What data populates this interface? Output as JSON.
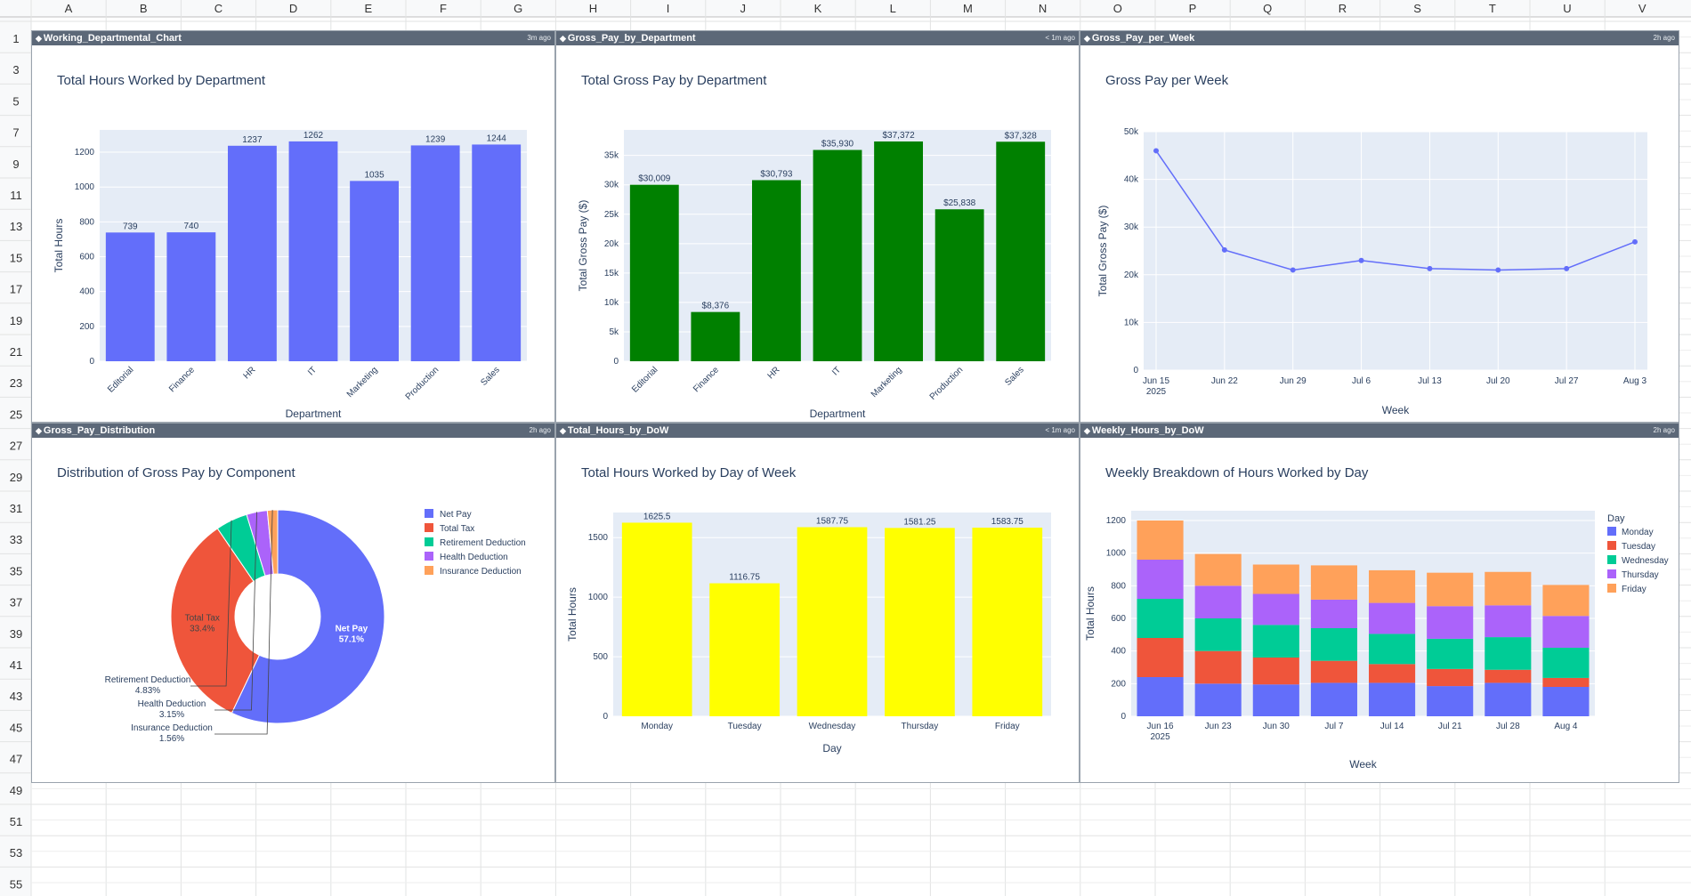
{
  "sheet": {
    "columns": [
      "A",
      "B",
      "C",
      "D",
      "E",
      "F",
      "G",
      "H",
      "I",
      "J",
      "K",
      "L",
      "M",
      "N",
      "O",
      "P",
      "Q",
      "R",
      "S",
      "T",
      "U",
      "V"
    ],
    "rows": [
      "1",
      "3",
      "5",
      "7",
      "9",
      "11",
      "13",
      "15",
      "17",
      "19",
      "21",
      "23",
      "25",
      "27",
      "29",
      "31",
      "33",
      "35",
      "37",
      "39",
      "41",
      "43",
      "45",
      "47",
      "49",
      "51",
      "53",
      "55"
    ]
  },
  "panels": {
    "p1": {
      "name": "Working_Departmental_Chart",
      "ago": "3m ago"
    },
    "p2": {
      "name": "Gross_Pay_by_Department",
      "ago": "< 1m ago"
    },
    "p3": {
      "name": "Gross_Pay_per_Week",
      "ago": "2h ago"
    },
    "p4": {
      "name": "Gross_Pay_Distribution",
      "ago": "2h ago"
    },
    "p5": {
      "name": "Total_Hours_by_DoW",
      "ago": "< 1m ago"
    },
    "p6": {
      "name": "Weekly_Hours_by_DoW",
      "ago": "2h ago"
    }
  },
  "colors": {
    "header": "#5c6878",
    "plot_bg": "#e5ecf6",
    "blue": "#636efa",
    "green": "#008000",
    "yellow": "#ffff00"
  },
  "chart_data": [
    {
      "type": "bar",
      "title": "Total Hours Worked by Department",
      "xlabel": "Department",
      "ylabel": "Total Hours",
      "categories": [
        "Editorial",
        "Finance",
        "HR",
        "IT",
        "Marketing",
        "Production",
        "Sales"
      ],
      "values": [
        739,
        740,
        1237,
        1262,
        1035,
        1239,
        1244
      ],
      "labels": [
        "739",
        "740",
        "1237",
        "1262",
        "1035",
        "1239",
        "1244"
      ],
      "yticks": [
        0,
        200,
        400,
        600,
        800,
        1000,
        1200
      ],
      "ylim": [
        0,
        1328
      ],
      "color": "#636efa"
    },
    {
      "type": "bar",
      "title": "Total Gross Pay by Department",
      "xlabel": "Department",
      "ylabel": "Total Gross Pay ($)",
      "categories": [
        "Editorial",
        "Finance",
        "HR",
        "IT",
        "Marketing",
        "Production",
        "Sales"
      ],
      "values": [
        30009,
        8376,
        30793,
        35930,
        37372,
        25838,
        37328
      ],
      "labels": [
        "$30,009",
        "$8,376",
        "$30,793",
        "$35,930",
        "$37,372",
        "$25,838",
        "$37,328"
      ],
      "yticks": [
        0,
        5000,
        10000,
        15000,
        20000,
        25000,
        30000,
        35000
      ],
      "yticklabels": [
        "0",
        "5k",
        "10k",
        "15k",
        "20k",
        "25k",
        "30k",
        "35k"
      ],
      "ylim": [
        0,
        39339
      ],
      "color": "#008000"
    },
    {
      "type": "line",
      "title": "Gross Pay per Week",
      "xlabel": "Week",
      "ylabel": "Total Gross Pay ($)",
      "x": [
        "2025-06-15",
        "2025-06-22",
        "2025-06-29",
        "2025-07-06",
        "2025-07-13",
        "2025-07-20",
        "2025-07-27",
        "2025-08-03"
      ],
      "y": [
        46000,
        25200,
        21000,
        23000,
        21300,
        21000,
        21300,
        26900
      ],
      "xticks": [
        {
          "label": "Jun 15",
          "sub": "2025"
        },
        {
          "label": "Jun 22",
          "sub": ""
        },
        {
          "label": "Jun 29",
          "sub": ""
        },
        {
          "label": "Jul 6",
          "sub": ""
        },
        {
          "label": "Jul 13",
          "sub": ""
        },
        {
          "label": "Jul 20",
          "sub": ""
        },
        {
          "label": "Jul 27",
          "sub": ""
        },
        {
          "label": "Aug 3",
          "sub": ""
        }
      ],
      "yticks": [
        0,
        10000,
        20000,
        30000,
        40000,
        50000
      ],
      "yticklabels": [
        "0",
        "10k",
        "20k",
        "30k",
        "40k",
        "50k"
      ],
      "ylim": [
        0,
        50000
      ],
      "color": "#636efa"
    },
    {
      "type": "pie",
      "title": "Distribution of Gross Pay by Component",
      "slices": [
        {
          "name": "Net Pay",
          "value": 57.1,
          "pct": "57.1%",
          "color": "#636efa"
        },
        {
          "name": "Total Tax",
          "value": 33.4,
          "pct": "33.4%",
          "color": "#ef553b"
        },
        {
          "name": "Retirement Deduction",
          "value": 4.83,
          "pct": "4.83%",
          "color": "#00cc96"
        },
        {
          "name": "Health Deduction",
          "value": 3.15,
          "pct": "3.15%",
          "color": "#ab63fa"
        },
        {
          "name": "Insurance Deduction",
          "value": 1.56,
          "pct": "1.56%",
          "color": "#ffa15a"
        }
      ],
      "legend": "right"
    },
    {
      "type": "bar",
      "title": "Total Hours Worked by Day of Week",
      "xlabel": "Day",
      "ylabel": "Total Hours",
      "categories": [
        "Monday",
        "Tuesday",
        "Wednesday",
        "Thursday",
        "Friday"
      ],
      "values": [
        1625.5,
        1116.75,
        1587.75,
        1581.25,
        1583.75
      ],
      "labels": [
        "1625.5",
        "1116.75",
        "1587.75",
        "1581.25",
        "1583.75"
      ],
      "yticks": [
        0,
        500,
        1000,
        1500
      ],
      "ylim": [
        0,
        1711
      ],
      "color": "#ffff00"
    },
    {
      "type": "bar",
      "stacked": true,
      "title": "Weekly Breakdown of Hours Worked by Day",
      "xlabel": "Week",
      "ylabel": "Total Hours",
      "legend_title": "Day",
      "categories": [
        {
          "label": "Jun 16",
          "sub": "2025"
        },
        {
          "label": "Jun 23",
          "sub": ""
        },
        {
          "label": "Jun 30",
          "sub": ""
        },
        {
          "label": "Jul 7",
          "sub": ""
        },
        {
          "label": "Jul 14",
          "sub": ""
        },
        {
          "label": "Jul 21",
          "sub": ""
        },
        {
          "label": "Jul 28",
          "sub": ""
        },
        {
          "label": "Aug 4",
          "sub": ""
        }
      ],
      "series": [
        {
          "name": "Monday",
          "color": "#636efa",
          "values": [
            240,
            200,
            195,
            205,
            205,
            185,
            205,
            180
          ]
        },
        {
          "name": "Tuesday",
          "color": "#ef553b",
          "values": [
            240,
            200,
            165,
            135,
            115,
            105,
            80,
            55
          ]
        },
        {
          "name": "Wednesday",
          "color": "#00cc96",
          "values": [
            240,
            200,
            200,
            200,
            185,
            185,
            200,
            185
          ]
        },
        {
          "name": "Thursday",
          "color": "#ab63fa",
          "values": [
            240,
            200,
            190,
            175,
            190,
            200,
            195,
            195
          ]
        },
        {
          "name": "Friday",
          "color": "#ffa15a",
          "values": [
            240,
            195,
            180,
            210,
            200,
            205,
            205,
            190
          ]
        }
      ],
      "yticks": [
        0,
        200,
        400,
        600,
        800,
        1000,
        1200
      ],
      "ylim": [
        0,
        1260
      ]
    }
  ]
}
